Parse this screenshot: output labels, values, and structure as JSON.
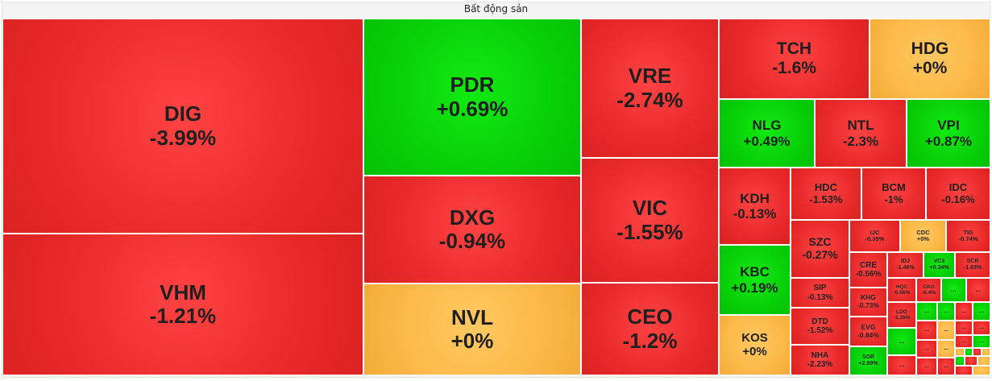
{
  "chart_data": {
    "type": "treemap",
    "title": "Bất động sản",
    "colors": {
      "down": "#e82a2a",
      "up": "#07d007",
      "flat": "#fcb947"
    },
    "tiles": [
      {
        "label": "DIG",
        "value": "-3.99%",
        "trend": "down"
      },
      {
        "label": "VHM",
        "value": "-1.21%",
        "trend": "down"
      },
      {
        "label": "PDR",
        "value": "+0.69%",
        "trend": "up"
      },
      {
        "label": "DXG",
        "value": "-0.94%",
        "trend": "down"
      },
      {
        "label": "NVL",
        "value": "+0%",
        "trend": "flat"
      },
      {
        "label": "VRE",
        "value": "-2.74%",
        "trend": "down"
      },
      {
        "label": "VIC",
        "value": "-1.55%",
        "trend": "down"
      },
      {
        "label": "CEO",
        "value": "-1.2%",
        "trend": "down"
      },
      {
        "label": "TCH",
        "value": "-1.6%",
        "trend": "down"
      },
      {
        "label": "HDG",
        "value": "+0%",
        "trend": "flat"
      },
      {
        "label": "NLG",
        "value": "+0.49%",
        "trend": "up"
      },
      {
        "label": "NTL",
        "value": "-2.3%",
        "trend": "down"
      },
      {
        "label": "VPI",
        "value": "+0.87%",
        "trend": "up"
      },
      {
        "label": "KDH",
        "value": "-0.13%",
        "trend": "down"
      },
      {
        "label": "HDC",
        "value": "-1.53%",
        "trend": "down"
      },
      {
        "label": "BCM",
        "value": "-1%",
        "trend": "down"
      },
      {
        "label": "IDC",
        "value": "-0.16%",
        "trend": "down"
      },
      {
        "label": "KBC",
        "value": "+0.19%",
        "trend": "up"
      },
      {
        "label": "SZC",
        "value": "-0.27%",
        "trend": "down"
      },
      {
        "label": "KOS",
        "value": "+0%",
        "trend": "flat"
      },
      {
        "label": "SIP",
        "value": "-0.13%",
        "trend": "down"
      },
      {
        "label": "DTD",
        "value": "-1.52%",
        "trend": "down"
      },
      {
        "label": "NHA",
        "value": "-2.23%",
        "trend": "down"
      },
      {
        "label": "IJC",
        "value": "-0.35%",
        "trend": "down"
      },
      {
        "label": "CDC",
        "value": "+0%",
        "trend": "flat"
      },
      {
        "label": "TIG",
        "value": "-0.74%",
        "trend": "down"
      },
      {
        "label": "CRE",
        "value": "-0.56%",
        "trend": "down"
      },
      {
        "label": "IDJ",
        "value": "-1.46%",
        "trend": "down"
      },
      {
        "label": "VC3",
        "value": "+0.34%",
        "trend": "up"
      },
      {
        "label": "SCR",
        "value": "-1.83%",
        "trend": "down"
      },
      {
        "label": "HQC",
        "value": "-0.56%",
        "trend": "down"
      },
      {
        "label": "CKG",
        "value": "-0.4%",
        "trend": "down"
      },
      {
        "label": "KHG",
        "value": "-0.73%",
        "trend": "down"
      },
      {
        "label": "LDG",
        "value": "-1.35%",
        "trend": "down"
      },
      {
        "label": "EVG",
        "value": "-0.84%",
        "trend": "down"
      },
      {
        "label": "SGR",
        "value": "+2.89%",
        "trend": "up"
      },
      {
        "label": "...",
        "value": "",
        "trend": "up"
      },
      {
        "label": "...",
        "value": "",
        "trend": "down"
      },
      {
        "label": "...",
        "value": "",
        "trend": "up"
      },
      {
        "label": "...",
        "value": "",
        "trend": "up"
      },
      {
        "label": "...",
        "value": "",
        "trend": "down"
      },
      {
        "label": "...",
        "value": "",
        "trend": "up"
      },
      {
        "label": "...",
        "value": "",
        "trend": "up"
      },
      {
        "label": "...",
        "value": "",
        "trend": "down"
      },
      {
        "label": "...",
        "value": "",
        "trend": "flat"
      },
      {
        "label": "...",
        "value": "",
        "trend": "down"
      },
      {
        "label": "...",
        "value": "",
        "trend": "down"
      },
      {
        "label": "...",
        "value": "",
        "trend": "red"
      },
      {
        "label": "...",
        "value": "",
        "trend": "up"
      },
      {
        "label": "...",
        "value": "",
        "trend": "down"
      },
      {
        "label": "...",
        "value": "",
        "trend": "down"
      },
      {
        "label": "...",
        "value": "",
        "trend": "down"
      },
      {
        "label": "...",
        "value": "",
        "trend": "flat"
      },
      {
        "label": "...",
        "value": "",
        "trend": "down"
      },
      {
        "label": "",
        "value": "",
        "trend": "flat"
      },
      {
        "label": "",
        "value": "",
        "trend": "up"
      },
      {
        "label": "",
        "value": "",
        "trend": "down"
      },
      {
        "label": "",
        "value": "",
        "trend": "flat"
      },
      {
        "label": "",
        "value": "",
        "trend": "up"
      },
      {
        "label": "",
        "value": "",
        "trend": "down"
      },
      {
        "label": "",
        "value": "",
        "trend": "flat"
      },
      {
        "label": "",
        "value": "",
        "trend": "down"
      },
      {
        "label": "",
        "value": "",
        "trend": "flat"
      }
    ]
  }
}
